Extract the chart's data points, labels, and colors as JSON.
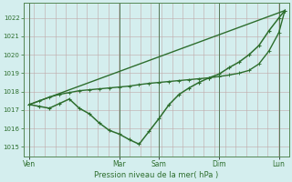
{
  "background_color": "#d4eeee",
  "grid_color_h": "#c0a8a8",
  "grid_color_v": "#c0a8a8",
  "line_color": "#2d6e2d",
  "title": "Pression niveau de la mer( hPa )",
  "ylim": [
    1014.5,
    1022.8
  ],
  "yticks": [
    1015,
    1016,
    1017,
    1018,
    1019,
    1020,
    1021,
    1022
  ],
  "xlim": [
    -0.3,
    13.0
  ],
  "x_day_labels": [
    "Ven",
    "Mar",
    "Sam",
    "Dim",
    "Lun"
  ],
  "x_day_positions": [
    0,
    4.5,
    6.5,
    9.5,
    12.5
  ],
  "x_vline_positions": [
    0,
    4.5,
    6.5,
    9.5,
    12.5
  ],
  "line1_x": [
    0,
    12.8
  ],
  "line1_y": [
    1017.3,
    1022.4
  ],
  "line2_x": [
    0,
    0.5,
    1.0,
    1.5,
    2.0,
    2.5,
    3.0,
    3.5,
    4.0,
    4.5,
    5.0,
    5.5,
    6.0,
    6.5,
    7.0,
    7.5,
    8.0,
    8.5,
    9.0,
    9.5,
    10.0,
    10.5,
    11.0,
    11.5,
    12.0,
    12.5,
    12.8
  ],
  "line2_y": [
    1017.3,
    1017.2,
    1017.1,
    1017.35,
    1017.6,
    1017.1,
    1016.8,
    1016.3,
    1015.9,
    1015.7,
    1015.4,
    1015.15,
    1015.85,
    1016.55,
    1017.3,
    1017.85,
    1018.2,
    1018.5,
    1018.75,
    1018.95,
    1019.3,
    1019.6,
    1020.0,
    1020.5,
    1021.3,
    1022.0,
    1022.4
  ],
  "line3_x": [
    0,
    0.5,
    1.0,
    1.5,
    2.0,
    2.5,
    3.0,
    3.5,
    4.0,
    4.5,
    5.0,
    5.5,
    6.0,
    6.5,
    7.0,
    7.5,
    8.0,
    8.5,
    9.0,
    9.5,
    10.0,
    10.5,
    11.0,
    11.5,
    12.0,
    12.5,
    12.8
  ],
  "line3_y": [
    1017.3,
    1017.5,
    1017.7,
    1017.85,
    1017.95,
    1018.05,
    1018.1,
    1018.15,
    1018.2,
    1018.25,
    1018.3,
    1018.38,
    1018.45,
    1018.5,
    1018.55,
    1018.6,
    1018.65,
    1018.7,
    1018.75,
    1018.82,
    1018.9,
    1019.0,
    1019.15,
    1019.5,
    1020.2,
    1021.2,
    1022.4
  ],
  "n_vgrid": 26,
  "spine_color": "#558855"
}
